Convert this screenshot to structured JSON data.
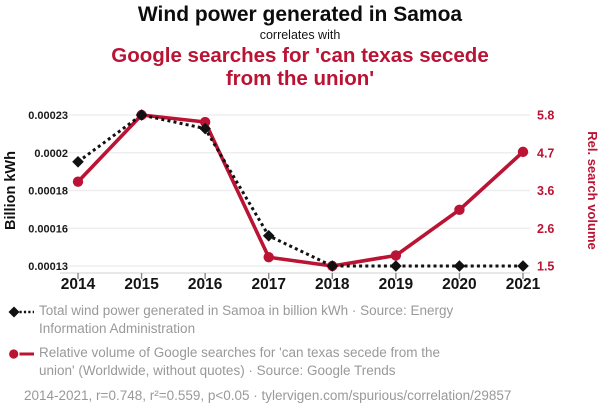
{
  "header": {
    "title": "Wind power generated in Samoa",
    "connector": "correlates with",
    "subtitle": "Google searches for 'can texas secede from the union'"
  },
  "colors": {
    "accent_red": "#ba1333",
    "series_black": "#111111",
    "legend_gray": "#999999",
    "gridline": "#ececec",
    "axis_line": "#d9d9d9",
    "tick_mark": "#8a8a8a"
  },
  "chart_data": {
    "type": "line",
    "x": [
      2014,
      2015,
      2016,
      2017,
      2018,
      2019,
      2020,
      2021
    ],
    "series": [
      {
        "id": "wind-power",
        "name": "Total wind power generated in Samoa in billion kWh",
        "axis": "left",
        "color": "#111111",
        "line_style": "dashed",
        "marker": "diamond",
        "values": [
          0.000199,
          0.00023,
          0.000221,
          0.00015,
          0.00013,
          0.00013,
          0.00013,
          0.00013
        ]
      },
      {
        "id": "texas-secede-searches",
        "name": "Relative volume of Google searches for 'can texas secede from the union'",
        "axis": "right",
        "color": "#ba1333",
        "line_style": "solid",
        "marker": "circle",
        "values": [
          3.9,
          5.8,
          5.6,
          1.75,
          1.5,
          1.8,
          3.1,
          4.75
        ]
      }
    ],
    "left_axis": {
      "label": "Billion kWh",
      "min": 0.00013,
      "max": 0.00023,
      "tick_labels": [
        "0.00023",
        "0.0002",
        "0.00018",
        "0.00016",
        "0.00013"
      ]
    },
    "right_axis": {
      "label": "Rel. search volume",
      "min": 1.5,
      "max": 5.8,
      "tick_labels": [
        "5.8",
        "4.7",
        "3.6",
        "2.6",
        "1.5"
      ]
    },
    "grid": "horizontal",
    "legend_position": "bottom"
  },
  "legend": {
    "items": [
      {
        "lines": [
          "Total wind power generated in Samoa in billion kWh · Source: Energy",
          "Information Administration"
        ]
      },
      {
        "lines": [
          "Relative volume of Google searches for 'can texas secede from the",
          "union' (Worldwide, without quotes) · Source: Google Trends"
        ]
      }
    ],
    "footer": "2014-2021, r=0.748, r²=0.559, p<0.05 · tylervigen.com/spurious/correlation/29857"
  }
}
